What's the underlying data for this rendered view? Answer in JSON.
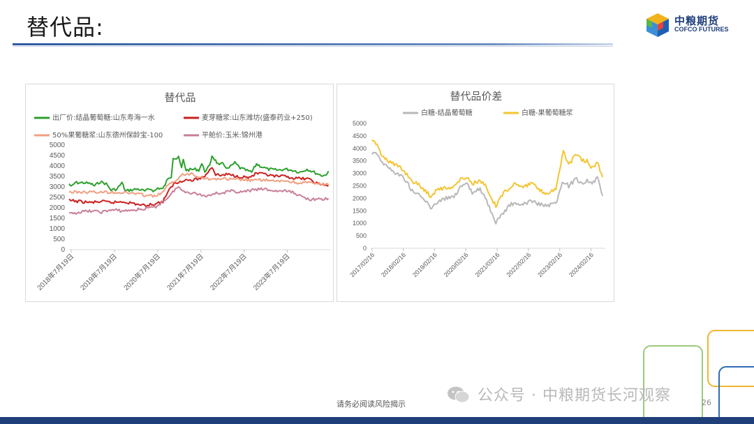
{
  "slide": {
    "title": "替代品:",
    "footer_note": "请务必阅读风险揭示",
    "page_number": "26",
    "watermark": "公众号 · 中粮期货长河观察"
  },
  "logo": {
    "cn": "中粮期货",
    "en": "COFCO FUTURES"
  },
  "colors": {
    "title_rule": "#2f5aa0",
    "bottom_bar": "#1f3f7a",
    "green": "#2ca02c",
    "red": "#cc1f1f",
    "salmon": "#f0a080",
    "mauve": "#c97f95",
    "gray": "#b8b8b8",
    "gold": "#f5c431"
  },
  "chart_data": [
    {
      "type": "line",
      "title": "替代品",
      "ylim": [
        0,
        5000
      ],
      "yticks": [
        0,
        500,
        1000,
        1500,
        2000,
        2500,
        3000,
        3500,
        4000,
        4500,
        5000
      ],
      "x_start": "2018-07-01",
      "x_end": "2024-07-15",
      "xtick_labels": [
        "2018年7月19日",
        "2019年7月19日",
        "2020年7月19日",
        "2021年7月19日",
        "2022年7月19日",
        "2023年7月19日"
      ],
      "xtick_dates": [
        "2018-07-19",
        "2019-07-19",
        "2020-07-19",
        "2021-07-19",
        "2022-07-19",
        "2023-07-19"
      ],
      "legend": "top",
      "grid": false,
      "series": [
        {
          "name": "出厂价:结晶葡萄糖:山东寿海一水",
          "color": "#2ca02c",
          "points": [
            [
              "2018-07-01",
              3150
            ],
            [
              "2018-07-20",
              3000
            ],
            [
              "2018-08-20",
              3200
            ],
            [
              "2018-11-01",
              3200
            ],
            [
              "2019-01-01",
              3150
            ],
            [
              "2019-02-01",
              3050
            ],
            [
              "2019-03-20",
              3250
            ],
            [
              "2019-05-10",
              3150
            ],
            [
              "2019-06-20",
              2850
            ],
            [
              "2019-08-10",
              2900
            ],
            [
              "2019-09-20",
              3200
            ],
            [
              "2019-10-20",
              2800
            ],
            [
              "2019-12-01",
              2850
            ],
            [
              "2020-02-01",
              2900
            ],
            [
              "2020-04-01",
              2800
            ],
            [
              "2020-05-20",
              2900
            ],
            [
              "2020-06-20",
              2800
            ],
            [
              "2020-07-20",
              2950
            ],
            [
              "2020-09-01",
              2900
            ],
            [
              "2020-10-01",
              3250
            ],
            [
              "2020-10-20",
              3450
            ],
            [
              "2020-11-10",
              3500
            ],
            [
              "2020-11-25",
              4400
            ],
            [
              "2020-12-20",
              4350
            ],
            [
              "2021-01-10",
              4400
            ],
            [
              "2021-02-05",
              3900
            ],
            [
              "2021-02-20",
              4300
            ],
            [
              "2021-03-15",
              3800
            ],
            [
              "2021-06-01",
              3850
            ],
            [
              "2021-07-01",
              3800
            ],
            [
              "2021-07-25",
              4100
            ],
            [
              "2021-08-20",
              3750
            ],
            [
              "2021-10-01",
              4000
            ],
            [
              "2021-10-20",
              4500
            ],
            [
              "2021-11-20",
              4250
            ],
            [
              "2021-12-20",
              4000
            ],
            [
              "2022-01-20",
              4150
            ],
            [
              "2022-03-01",
              3850
            ],
            [
              "2022-05-01",
              4150
            ],
            [
              "2022-06-15",
              3900
            ],
            [
              "2022-08-01",
              3800
            ],
            [
              "2022-09-20",
              3700
            ],
            [
              "2022-11-01",
              4100
            ],
            [
              "2022-12-01",
              4000
            ],
            [
              "2023-02-01",
              3850
            ],
            [
              "2023-05-01",
              3800
            ],
            [
              "2023-07-01",
              3850
            ],
            [
              "2023-09-01",
              3800
            ],
            [
              "2023-11-01",
              3700
            ],
            [
              "2024-01-01",
              3850
            ],
            [
              "2024-03-01",
              3700
            ],
            [
              "2024-05-01",
              3550
            ],
            [
              "2024-06-01",
              3550
            ],
            [
              "2024-07-01",
              3750
            ]
          ]
        },
        {
          "name": "麦芽糖浆:山东潍坊(盛泰药业+250)",
          "color": "#cc1f1f",
          "points": [
            [
              "2018-07-01",
              2350
            ],
            [
              "2018-10-01",
              2300
            ],
            [
              "2019-01-01",
              2250
            ],
            [
              "2019-04-01",
              2300
            ],
            [
              "2019-07-01",
              2250
            ],
            [
              "2019-10-01",
              2300
            ],
            [
              "2020-01-01",
              2200
            ],
            [
              "2020-04-01",
              2100
            ],
            [
              "2020-07-01",
              2200
            ],
            [
              "2020-09-01",
              2300
            ],
            [
              "2020-10-01",
              2650
            ],
            [
              "2020-11-01",
              2900
            ],
            [
              "2020-12-01",
              3150
            ],
            [
              "2021-01-01",
              3200
            ],
            [
              "2021-03-01",
              3350
            ],
            [
              "2021-05-01",
              3300
            ],
            [
              "2021-07-01",
              3400
            ],
            [
              "2021-08-20",
              3500
            ],
            [
              "2021-10-01",
              3850
            ],
            [
              "2021-10-20",
              3950
            ],
            [
              "2021-11-20",
              3600
            ],
            [
              "2022-01-01",
              3550
            ],
            [
              "2022-03-01",
              3600
            ],
            [
              "2022-06-01",
              3500
            ],
            [
              "2022-09-01",
              3450
            ],
            [
              "2022-11-01",
              3650
            ],
            [
              "2023-01-01",
              3600
            ],
            [
              "2023-04-01",
              3500
            ],
            [
              "2023-07-01",
              3500
            ],
            [
              "2023-10-01",
              3400
            ],
            [
              "2024-01-01",
              3400
            ],
            [
              "2024-04-01",
              3150
            ],
            [
              "2024-07-01",
              3050
            ]
          ]
        },
        {
          "name": "50%果葡糖浆:山东德州保龄宝-100",
          "color": "#f0a080",
          "points": [
            [
              "2018-07-01",
              2750
            ],
            [
              "2019-01-01",
              2750
            ],
            [
              "2019-07-01",
              2750
            ],
            [
              "2020-01-01",
              2700
            ],
            [
              "2020-04-01",
              2600
            ],
            [
              "2020-07-01",
              2550
            ],
            [
              "2020-09-01",
              2750
            ],
            [
              "2020-10-01",
              3000
            ],
            [
              "2020-12-01",
              3250
            ],
            [
              "2021-02-01",
              3550
            ],
            [
              "2021-05-01",
              3650
            ],
            [
              "2021-07-01",
              3500
            ],
            [
              "2021-09-01",
              3400
            ],
            [
              "2021-11-01",
              3350
            ],
            [
              "2022-01-01",
              3400
            ],
            [
              "2022-04-01",
              3350
            ],
            [
              "2022-07-01",
              3350
            ],
            [
              "2022-10-01",
              3300
            ],
            [
              "2023-01-01",
              3350
            ],
            [
              "2023-04-01",
              3250
            ],
            [
              "2023-07-01",
              3300
            ],
            [
              "2023-10-01",
              3200
            ],
            [
              "2024-01-01",
              3200
            ],
            [
              "2024-04-01",
              3150
            ],
            [
              "2024-07-01",
              3100
            ]
          ]
        },
        {
          "name": "平舱价:玉米:锦州港",
          "color": "#c97f95",
          "points": [
            [
              "2018-07-01",
              1700
            ],
            [
              "2018-10-01",
              1800
            ],
            [
              "2019-01-01",
              1850
            ],
            [
              "2019-04-01",
              1800
            ],
            [
              "2019-07-01",
              1900
            ],
            [
              "2019-10-01",
              1850
            ],
            [
              "2020-01-01",
              1900
            ],
            [
              "2020-04-01",
              1950
            ],
            [
              "2020-07-01",
              2050
            ],
            [
              "2020-09-01",
              2300
            ],
            [
              "2020-11-01",
              2600
            ],
            [
              "2020-12-15",
              2900
            ],
            [
              "2021-01-10",
              3000
            ],
            [
              "2021-02-01",
              2850
            ],
            [
              "2021-04-01",
              2750
            ],
            [
              "2021-07-01",
              2650
            ],
            [
              "2021-09-01",
              2550
            ],
            [
              "2021-11-01",
              2700
            ],
            [
              "2022-01-01",
              2700
            ],
            [
              "2022-04-01",
              2800
            ],
            [
              "2022-07-01",
              2750
            ],
            [
              "2022-10-01",
              2850
            ],
            [
              "2023-01-01",
              2900
            ],
            [
              "2023-04-01",
              2800
            ],
            [
              "2023-07-01",
              2800
            ],
            [
              "2023-09-01",
              2750
            ],
            [
              "2023-12-01",
              2500
            ],
            [
              "2024-02-01",
              2400
            ],
            [
              "2024-05-01",
              2400
            ],
            [
              "2024-07-01",
              2450
            ]
          ]
        }
      ]
    },
    {
      "type": "line",
      "title": "替代品价差",
      "ylim": [
        0,
        5000
      ],
      "yticks": [
        0,
        500,
        1000,
        1500,
        2000,
        2500,
        3000,
        3500,
        4000,
        4500,
        5000
      ],
      "x_start": "2017-02-01",
      "x_end": "2024-08-01",
      "xtick_labels": [
        "2017/02/16",
        "2018/02/16",
        "2019/02/16",
        "2020/02/16",
        "2021/02/16",
        "2022/02/16",
        "2023/02/16",
        "2024/02/16"
      ],
      "xtick_dates": [
        "2017-02-16",
        "2018-02-16",
        "2019-02-16",
        "2020-02-16",
        "2021-02-16",
        "2022-02-16",
        "2023-02-16",
        "2024-02-16"
      ],
      "legend": "top",
      "grid": false,
      "series": [
        {
          "name": "白糖-结晶葡萄糖",
          "color": "#b8b8b8",
          "points": [
            [
              "2017-02-16",
              3800
            ],
            [
              "2017-04-01",
              3900
            ],
            [
              "2017-06-01",
              3500
            ],
            [
              "2017-09-01",
              3200
            ],
            [
              "2017-12-01",
              3000
            ],
            [
              "2018-03-01",
              2800
            ],
            [
              "2018-06-01",
              2300
            ],
            [
              "2018-09-01",
              2100
            ],
            [
              "2018-11-01",
              1900
            ],
            [
              "2019-01-01",
              1600
            ],
            [
              "2019-04-01",
              1900
            ],
            [
              "2019-07-01",
              2000
            ],
            [
              "2019-10-01",
              2100
            ],
            [
              "2020-01-01",
              2500
            ],
            [
              "2020-03-01",
              2550
            ],
            [
              "2020-05-01",
              2200
            ],
            [
              "2020-08-01",
              2400
            ],
            [
              "2020-10-01",
              2000
            ],
            [
              "2020-12-01",
              1500
            ],
            [
              "2021-02-01",
              900
            ],
            [
              "2021-03-01",
              1200
            ],
            [
              "2021-05-01",
              1400
            ],
            [
              "2021-07-01",
              1700
            ],
            [
              "2021-09-01",
              1800
            ],
            [
              "2021-11-01",
              1700
            ],
            [
              "2022-01-01",
              1800
            ],
            [
              "2022-04-01",
              1900
            ],
            [
              "2022-07-01",
              1750
            ],
            [
              "2022-10-01",
              1700
            ],
            [
              "2023-01-01",
              1800
            ],
            [
              "2023-04-01",
              2700
            ],
            [
              "2023-06-01",
              2500
            ],
            [
              "2023-09-01",
              2800
            ],
            [
              "2023-11-01",
              2600
            ],
            [
              "2024-01-01",
              2700
            ],
            [
              "2024-03-01",
              2600
            ],
            [
              "2024-05-01",
              2800
            ],
            [
              "2024-07-01",
              2100
            ]
          ]
        },
        {
          "name": "白糖-果葡萄糖浆",
          "color": "#f5c431",
          "points": [
            [
              "2017-02-16",
              4300
            ],
            [
              "2017-04-01",
              4200
            ],
            [
              "2017-06-01",
              3800
            ],
            [
              "2017-09-01",
              3500
            ],
            [
              "2017-12-01",
              3300
            ],
            [
              "2018-03-01",
              3100
            ],
            [
              "2018-06-01",
              2700
            ],
            [
              "2018-09-01",
              2500
            ],
            [
              "2018-11-01",
              2300
            ],
            [
              "2019-01-01",
              2100
            ],
            [
              "2019-04-01",
              2400
            ],
            [
              "2019-07-01",
              2400
            ],
            [
              "2019-10-01",
              2500
            ],
            [
              "2020-01-01",
              2800
            ],
            [
              "2020-03-01",
              2850
            ],
            [
              "2020-05-01",
              2600
            ],
            [
              "2020-08-01",
              2700
            ],
            [
              "2020-10-01",
              2500
            ],
            [
              "2020-12-01",
              2000
            ],
            [
              "2021-02-01",
              1700
            ],
            [
              "2021-03-01",
              1900
            ],
            [
              "2021-05-01",
              2200
            ],
            [
              "2021-07-01",
              2400
            ],
            [
              "2021-09-01",
              2600
            ],
            [
              "2021-11-01",
              2550
            ],
            [
              "2022-01-01",
              2500
            ],
            [
              "2022-04-01",
              2600
            ],
            [
              "2022-07-01",
              2300
            ],
            [
              "2022-10-01",
              2200
            ],
            [
              "2023-01-01",
              2400
            ],
            [
              "2023-04-01",
              3900
            ],
            [
              "2023-06-01",
              3300
            ],
            [
              "2023-09-01",
              3800
            ],
            [
              "2023-11-01",
              3500
            ],
            [
              "2024-01-01",
              3500
            ],
            [
              "2024-03-01",
              3200
            ],
            [
              "2024-05-01",
              3450
            ],
            [
              "2024-07-01",
              2850
            ]
          ]
        }
      ]
    }
  ]
}
